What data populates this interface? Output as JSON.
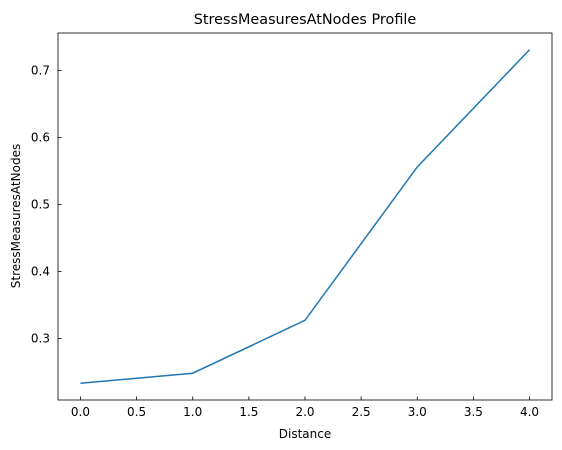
{
  "chart_data": {
    "type": "line",
    "title": "StressMeasuresAtNodes Profile",
    "x_label": "Distance",
    "y_label": "StressMeasuresAtNodes",
    "x": [
      0,
      1,
      2,
      3,
      4
    ],
    "series": [
      {
        "name": "StressMeasuresAtNodes",
        "color": "#1f77b4",
        "values": [
          0.233,
          0.248,
          0.327,
          0.556,
          0.731
        ]
      }
    ],
    "xlim": [
      -0.2,
      4.2
    ],
    "xticks": [
      {
        "value": 0,
        "label": "0.0"
      },
      0.5,
      {
        "value": 1,
        "label": "1.0"
      },
      1.5,
      {
        "value": 2,
        "label": "2.0"
      },
      2.5,
      {
        "value": 3,
        "label": "3.0"
      },
      3.5,
      {
        "value": 4,
        "label": "4.0"
      }
    ],
    "ylim": [
      0.208,
      0.756
    ],
    "yticks": [
      0.3,
      0.4,
      0.5,
      0.6,
      0.7
    ],
    "grid": false,
    "tick_direction": "in"
  }
}
